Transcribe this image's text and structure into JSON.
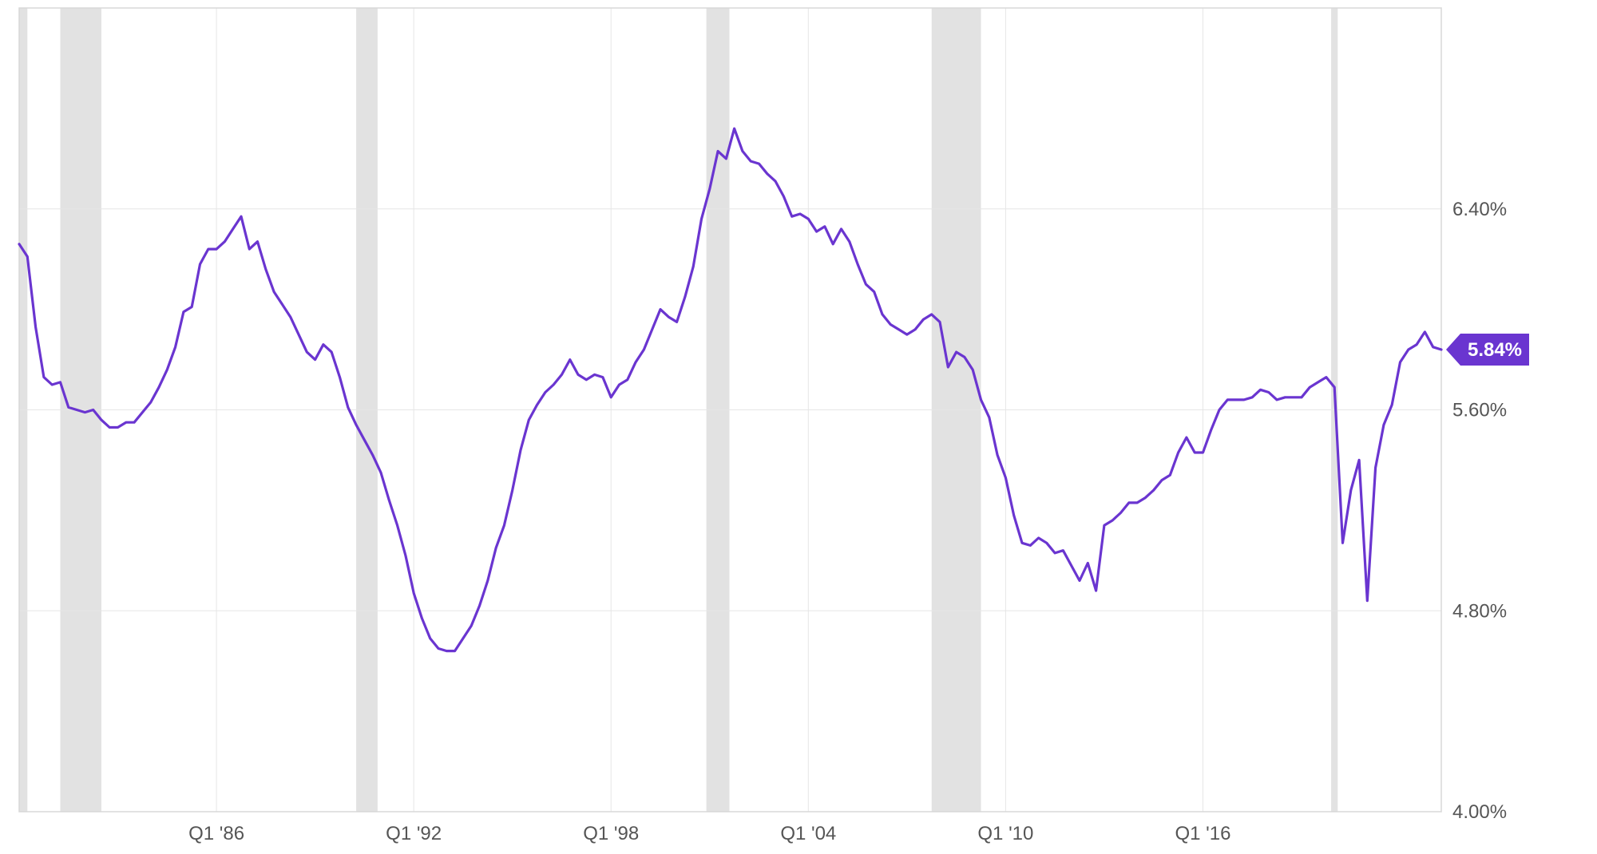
{
  "chart_data": {
    "type": "line",
    "xlabel": "",
    "ylabel": "",
    "x_tick_labels": [
      "Q1 '86",
      "Q1 '92",
      "Q1 '98",
      "Q1 '04",
      "Q1 '10",
      "Q1 '16"
    ],
    "x_tick_values": [
      1986.0,
      1992.0,
      1998.0,
      2004.0,
      2010.0,
      2016.0
    ],
    "y_tick_labels": [
      "4.00%",
      "4.80%",
      "5.60%",
      "6.40%"
    ],
    "y_tick_values": [
      4.0,
      4.8,
      5.6,
      6.4
    ],
    "xlim": [
      1980.0,
      2023.25
    ],
    "ylim": [
      4.0,
      7.2
    ],
    "grid": true,
    "line_color": "#6a35d0",
    "recession_color": "#e2e2e2",
    "recession_bands": [
      [
        1980.0,
        1980.25
      ],
      [
        1981.25,
        1982.5
      ],
      [
        1990.25,
        1990.9
      ],
      [
        2000.9,
        2001.6
      ],
      [
        2007.75,
        2009.25
      ],
      [
        2019.9,
        2020.1
      ]
    ],
    "last_value_label": "5.84%",
    "series": [
      {
        "values": [
          [
            1980.0,
            6.26
          ],
          [
            1980.25,
            6.21
          ],
          [
            1980.5,
            5.93
          ],
          [
            1980.75,
            5.73
          ],
          [
            1981.0,
            5.7
          ],
          [
            1981.25,
            5.71
          ],
          [
            1981.5,
            5.61
          ],
          [
            1981.75,
            5.6
          ],
          [
            1982.0,
            5.59
          ],
          [
            1982.25,
            5.6
          ],
          [
            1982.5,
            5.56
          ],
          [
            1982.75,
            5.53
          ],
          [
            1983.0,
            5.53
          ],
          [
            1983.25,
            5.55
          ],
          [
            1983.5,
            5.55
          ],
          [
            1983.75,
            5.59
          ],
          [
            1984.0,
            5.63
          ],
          [
            1984.25,
            5.69
          ],
          [
            1984.5,
            5.76
          ],
          [
            1984.75,
            5.85
          ],
          [
            1985.0,
            5.99
          ],
          [
            1985.25,
            6.01
          ],
          [
            1985.5,
            6.18
          ],
          [
            1985.75,
            6.24
          ],
          [
            1986.0,
            6.24
          ],
          [
            1986.25,
            6.27
          ],
          [
            1986.5,
            6.32
          ],
          [
            1986.75,
            6.37
          ],
          [
            1987.0,
            6.24
          ],
          [
            1987.25,
            6.27
          ],
          [
            1987.5,
            6.16
          ],
          [
            1987.75,
            6.07
          ],
          [
            1988.0,
            6.02
          ],
          [
            1988.25,
            5.97
          ],
          [
            1988.5,
            5.9
          ],
          [
            1988.75,
            5.83
          ],
          [
            1989.0,
            5.8
          ],
          [
            1989.25,
            5.86
          ],
          [
            1989.5,
            5.83
          ],
          [
            1989.75,
            5.73
          ],
          [
            1990.0,
            5.61
          ],
          [
            1990.25,
            5.54
          ],
          [
            1990.5,
            5.48
          ],
          [
            1990.75,
            5.42
          ],
          [
            1991.0,
            5.35
          ],
          [
            1991.25,
            5.24
          ],
          [
            1991.5,
            5.14
          ],
          [
            1991.75,
            5.02
          ],
          [
            1992.0,
            4.87
          ],
          [
            1992.25,
            4.77
          ],
          [
            1992.5,
            4.69
          ],
          [
            1992.75,
            4.65
          ],
          [
            1993.0,
            4.64
          ],
          [
            1993.25,
            4.64
          ],
          [
            1993.5,
            4.69
          ],
          [
            1993.75,
            4.74
          ],
          [
            1994.0,
            4.82
          ],
          [
            1994.25,
            4.92
          ],
          [
            1994.5,
            5.05
          ],
          [
            1994.75,
            5.14
          ],
          [
            1995.0,
            5.28
          ],
          [
            1995.25,
            5.44
          ],
          [
            1995.5,
            5.56
          ],
          [
            1995.75,
            5.62
          ],
          [
            1996.0,
            5.67
          ],
          [
            1996.25,
            5.7
          ],
          [
            1996.5,
            5.74
          ],
          [
            1996.75,
            5.8
          ],
          [
            1997.0,
            5.74
          ],
          [
            1997.25,
            5.72
          ],
          [
            1997.5,
            5.74
          ],
          [
            1997.75,
            5.73
          ],
          [
            1998.0,
            5.65
          ],
          [
            1998.25,
            5.7
          ],
          [
            1998.5,
            5.72
          ],
          [
            1998.75,
            5.79
          ],
          [
            1999.0,
            5.84
          ],
          [
            1999.25,
            5.92
          ],
          [
            1999.5,
            6.0
          ],
          [
            1999.75,
            5.97
          ],
          [
            2000.0,
            5.95
          ],
          [
            2000.25,
            6.05
          ],
          [
            2000.5,
            6.17
          ],
          [
            2000.75,
            6.36
          ],
          [
            2001.0,
            6.48
          ],
          [
            2001.25,
            6.63
          ],
          [
            2001.5,
            6.6
          ],
          [
            2001.75,
            6.72
          ],
          [
            2002.0,
            6.63
          ],
          [
            2002.25,
            6.59
          ],
          [
            2002.5,
            6.58
          ],
          [
            2002.75,
            6.54
          ],
          [
            2003.0,
            6.51
          ],
          [
            2003.25,
            6.45
          ],
          [
            2003.5,
            6.37
          ],
          [
            2003.75,
            6.38
          ],
          [
            2004.0,
            6.36
          ],
          [
            2004.25,
            6.31
          ],
          [
            2004.5,
            6.33
          ],
          [
            2004.75,
            6.26
          ],
          [
            2005.0,
            6.32
          ],
          [
            2005.25,
            6.27
          ],
          [
            2005.5,
            6.18
          ],
          [
            2005.75,
            6.1
          ],
          [
            2006.0,
            6.07
          ],
          [
            2006.25,
            5.98
          ],
          [
            2006.5,
            5.94
          ],
          [
            2006.75,
            5.92
          ],
          [
            2007.0,
            5.9
          ],
          [
            2007.25,
            5.92
          ],
          [
            2007.5,
            5.96
          ],
          [
            2007.75,
            5.98
          ],
          [
            2008.0,
            5.95
          ],
          [
            2008.25,
            5.77
          ],
          [
            2008.5,
            5.83
          ],
          [
            2008.75,
            5.81
          ],
          [
            2009.0,
            5.76
          ],
          [
            2009.25,
            5.64
          ],
          [
            2009.5,
            5.57
          ],
          [
            2009.75,
            5.42
          ],
          [
            2010.0,
            5.33
          ],
          [
            2010.25,
            5.18
          ],
          [
            2010.5,
            5.07
          ],
          [
            2010.75,
            5.06
          ],
          [
            2011.0,
            5.09
          ],
          [
            2011.25,
            5.07
          ],
          [
            2011.5,
            5.03
          ],
          [
            2011.75,
            5.04
          ],
          [
            2012.0,
            4.98
          ],
          [
            2012.25,
            4.92
          ],
          [
            2012.5,
            4.99
          ],
          [
            2012.75,
            4.88
          ],
          [
            2013.0,
            5.14
          ],
          [
            2013.25,
            5.16
          ],
          [
            2013.5,
            5.19
          ],
          [
            2013.75,
            5.23
          ],
          [
            2014.0,
            5.23
          ],
          [
            2014.25,
            5.25
          ],
          [
            2014.5,
            5.28
          ],
          [
            2014.75,
            5.32
          ],
          [
            2015.0,
            5.34
          ],
          [
            2015.25,
            5.43
          ],
          [
            2015.5,
            5.49
          ],
          [
            2015.75,
            5.43
          ],
          [
            2016.0,
            5.43
          ],
          [
            2016.25,
            5.52
          ],
          [
            2016.5,
            5.6
          ],
          [
            2016.75,
            5.64
          ],
          [
            2017.0,
            5.64
          ],
          [
            2017.25,
            5.64
          ],
          [
            2017.5,
            5.65
          ],
          [
            2017.75,
            5.68
          ],
          [
            2018.0,
            5.67
          ],
          [
            2018.25,
            5.64
          ],
          [
            2018.5,
            5.65
          ],
          [
            2018.75,
            5.65
          ],
          [
            2019.0,
            5.65
          ],
          [
            2019.25,
            5.69
          ],
          [
            2019.5,
            5.71
          ],
          [
            2019.75,
            5.73
          ],
          [
            2020.0,
            5.69
          ],
          [
            2020.25,
            5.07
          ],
          [
            2020.5,
            5.28
          ],
          [
            2020.75,
            5.4
          ],
          [
            2021.0,
            4.84
          ],
          [
            2021.25,
            5.37
          ],
          [
            2021.5,
            5.54
          ],
          [
            2021.75,
            5.62
          ],
          [
            2022.0,
            5.79
          ],
          [
            2022.25,
            5.84
          ],
          [
            2022.5,
            5.86
          ],
          [
            2022.75,
            5.91
          ],
          [
            2023.0,
            5.85
          ],
          [
            2023.25,
            5.84
          ]
        ]
      }
    ]
  }
}
